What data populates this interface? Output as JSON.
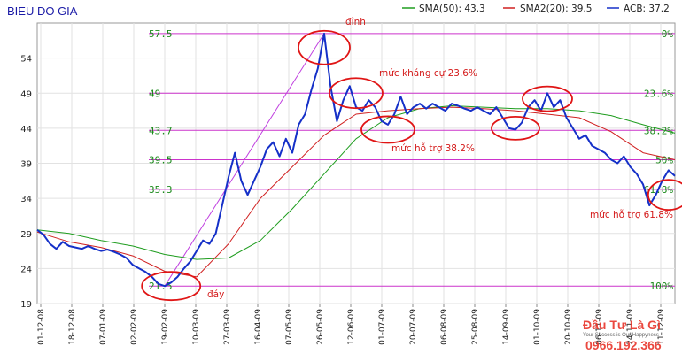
{
  "chart_data": {
    "type": "line",
    "title": "BIEU DO GIA",
    "ylim": [
      19,
      59
    ],
    "yticks": [
      19,
      24,
      29,
      34,
      39,
      44,
      49,
      54
    ],
    "xlim": [
      0,
      100
    ],
    "x_tick_labels": [
      "01-12-08",
      "18-12-08",
      "07-01-09",
      "02-02-09",
      "19-02-09",
      "10-03-09",
      "27-03-09",
      "16-04-09",
      "07-05-09",
      "26-05-09",
      "12-06-09",
      "01-07-09",
      "20-07-09",
      "06-08-09",
      "25-08-09",
      "14-09-09",
      "01-10-09",
      "20-10-09",
      "06-11-09",
      "24-11-09",
      "11-12-09"
    ],
    "grid": true,
    "legend_position": "top-right",
    "series": [
      {
        "name": "ACB",
        "label": "ACB: 37.2",
        "color": "#1530c8",
        "x": [
          0,
          1,
          2,
          3,
          4,
          5,
          6,
          7,
          8,
          9,
          10,
          11,
          12,
          13,
          14,
          15,
          16,
          17,
          18,
          19,
          20,
          21,
          22,
          23,
          24,
          25,
          26,
          27,
          28,
          29,
          30,
          31,
          32,
          33,
          34,
          35,
          36,
          37,
          38,
          39,
          40,
          41,
          42,
          43,
          44,
          45,
          46,
          47,
          48,
          49,
          50,
          51,
          52,
          53,
          54,
          55,
          56,
          57,
          58,
          59,
          60,
          61,
          62,
          63,
          64,
          65,
          66,
          67,
          68,
          69,
          70,
          71,
          72,
          73,
          74,
          75,
          76,
          77,
          78,
          79,
          80,
          81,
          82,
          83,
          84,
          85,
          86,
          87,
          88,
          89,
          90,
          91,
          92,
          93,
          94,
          95,
          96,
          97,
          98,
          99,
          100
        ],
        "values": [
          29.5,
          28.8,
          27.5,
          26.8,
          27.8,
          27.2,
          27.0,
          26.8,
          27.2,
          26.8,
          26.5,
          26.7,
          26.4,
          26.0,
          25.5,
          24.5,
          24.0,
          23.5,
          22.8,
          21.8,
          21.5,
          22.0,
          22.8,
          24.0,
          25.0,
          26.5,
          28.0,
          27.5,
          29.0,
          33.0,
          37.0,
          40.5,
          36.5,
          34.5,
          36.5,
          38.5,
          41.0,
          42.0,
          40.0,
          42.5,
          40.5,
          44.5,
          46.0,
          49.5,
          52.5,
          57.5,
          50.0,
          45.0,
          48.0,
          50.0,
          47.0,
          46.5,
          48.0,
          47.0,
          45.0,
          44.5,
          46.0,
          48.5,
          46.0,
          47.0,
          47.5,
          46.8,
          47.5,
          47.0,
          46.5,
          47.5,
          47.2,
          46.8,
          46.5,
          47.0,
          46.5,
          46.0,
          47.0,
          45.5,
          44.0,
          43.8,
          44.8,
          47.0,
          48.0,
          46.5,
          49.0,
          47.0,
          48.0,
          45.5,
          44.0,
          42.5,
          43.0,
          41.5,
          41.0,
          40.5,
          39.5,
          39.0,
          40.0,
          38.5,
          37.5,
          36.0,
          33.0,
          34.5,
          36.5,
          38.0,
          37.2
        ]
      },
      {
        "name": "SMA2(20)",
        "label": "SMA2(20): 39.5",
        "color": "#d02020",
        "x": [
          0,
          5,
          10,
          15,
          20,
          25,
          30,
          35,
          40,
          45,
          50,
          55,
          60,
          65,
          70,
          75,
          80,
          85,
          90,
          95,
          100
        ],
        "values": [
          29.2,
          27.8,
          27.0,
          25.8,
          23.6,
          22.8,
          27.5,
          34.0,
          38.5,
          43.0,
          46.0,
          46.5,
          46.8,
          47.0,
          46.8,
          46.5,
          46.0,
          45.5,
          43.5,
          40.5,
          39.5
        ]
      },
      {
        "name": "SMA(50)",
        "label": "SMA(50): 43.3",
        "color": "#1f9d1f",
        "x": [
          0,
          5,
          10,
          15,
          20,
          25,
          30,
          35,
          40,
          45,
          50,
          55,
          60,
          65,
          70,
          75,
          80,
          85,
          90,
          95,
          100
        ],
        "values": [
          29.5,
          29.0,
          28.0,
          27.2,
          26.0,
          25.3,
          25.5,
          28.0,
          32.5,
          37.5,
          42.5,
          45.5,
          46.8,
          47.2,
          47.0,
          46.8,
          46.8,
          46.5,
          45.8,
          44.5,
          43.3
        ]
      }
    ],
    "fibonacci_levels": [
      {
        "price": 57.5,
        "price_label": "57.5",
        "pct_label": "0%"
      },
      {
        "price": 49.0,
        "price_label": "49",
        "pct_label": "23.6%"
      },
      {
        "price": 43.7,
        "price_label": "43.7",
        "pct_label": "38.2%"
      },
      {
        "price": 39.5,
        "price_label": "39.5",
        "pct_label": "50%"
      },
      {
        "price": 35.3,
        "price_label": "35.3",
        "pct_label": "61.8%"
      },
      {
        "price": 21.5,
        "price_label": "21.5",
        "pct_label": "100%"
      }
    ],
    "trendline": {
      "x": [
        20,
        45
      ],
      "values": [
        21.5,
        57.5
      ],
      "color": "#c040e0"
    },
    "annotations": [
      {
        "text": "đỉnh",
        "color": "#d41a1a"
      },
      {
        "text": "đáy",
        "color": "#d41a1a"
      },
      {
        "text": "mức kháng cự 23.6%",
        "color": "#d41a1a"
      },
      {
        "text": "mức hỗ trợ 38.2%",
        "color": "#d41a1a"
      },
      {
        "text": "mức hỗ trợ 61.8%",
        "color": "#d41a1a"
      }
    ],
    "highlight_circles": [
      {
        "x": 45,
        "price": 55.5
      },
      {
        "x": 21,
        "price": 21.5
      },
      {
        "x": 50,
        "price": 49.0
      },
      {
        "x": 55,
        "price": 43.8
      },
      {
        "x": 75,
        "price": 44.0
      },
      {
        "x": 80,
        "price": 48.2
      },
      {
        "x": 99,
        "price": 34.5
      }
    ]
  },
  "watermark": {
    "line1": "Đầu Tư Là Gì",
    "line2": "Your Success is Our Happyness",
    "line3": "0966.192.366"
  }
}
